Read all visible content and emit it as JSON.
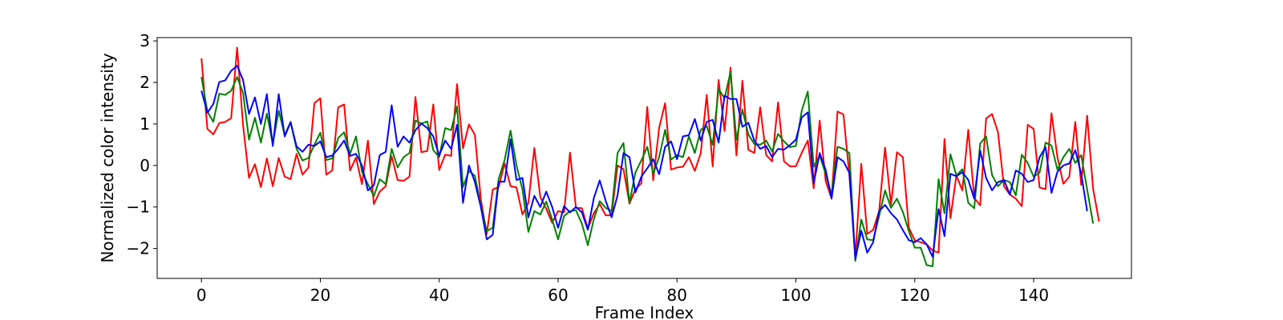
{
  "chart_data": {
    "type": "line",
    "title": "",
    "xlabel": "Frame Index",
    "ylabel": "Normalized color intensity",
    "xlim": [
      -7.45,
      156.45
    ],
    "ylim": [
      -2.72,
      3.08
    ],
    "xticks": [
      0,
      20,
      40,
      60,
      80,
      100,
      120,
      140
    ],
    "yticks": [
      -2,
      -1,
      0,
      1,
      2,
      3
    ],
    "grid": false,
    "legend": "none",
    "series": [
      {
        "color": "#ff0000",
        "values": [
          2.58,
          0.88,
          0.75,
          1.02,
          1.05,
          1.14,
          2.84,
          0.97,
          -0.3,
          0.03,
          -0.52,
          0.17,
          -0.5,
          0.18,
          -0.27,
          -0.33,
          0.28,
          -0.22,
          -0.05,
          1.5,
          1.62,
          -0.22,
          -0.12,
          1.4,
          1.47,
          -0.12,
          0.19,
          -0.45,
          0.6,
          -0.93,
          -0.63,
          -0.5,
          0.22,
          -0.35,
          -0.37,
          -0.27,
          1.65,
          0.32,
          0.35,
          1.47,
          -0.11,
          0.26,
          0.23,
          1.96,
          0.41,
          0.99,
          0.74,
          -0.81,
          -1.65,
          -0.58,
          -0.52,
          0.05,
          -0.5,
          -0.53,
          -1.18,
          -0.9,
          0.42,
          -0.76,
          -1.04,
          -1.38,
          -1.1,
          -1.13,
          0.31,
          -1.02,
          -1.03,
          -1.52,
          -1.15,
          -0.93,
          -1.2,
          -1.2,
          0.0,
          -0.09,
          -0.92,
          -0.57,
          -0.43,
          1.41,
          -0.36,
          0.91,
          1.5,
          -0.1,
          -0.05,
          -0.03,
          0.2,
          -0.13,
          0.3,
          1.7,
          -0.02,
          2.06,
          0.83,
          2.36,
          0.24,
          2.04,
          0.38,
          0.3,
          1.4,
          0.25,
          0.1,
          1.52,
          0.1,
          -0.02,
          -0.02,
          0.31,
          0.6,
          -0.55,
          1.08,
          -0.37,
          -0.8,
          1.3,
          1.23,
          -0.24,
          -2.2,
          0.04,
          -1.65,
          -1.55,
          -1.1,
          0.43,
          -0.94,
          0.32,
          0.2,
          -1.5,
          -1.8,
          -1.85,
          -1.9,
          -2.05,
          -2.1,
          0.64,
          -1.27,
          -0.24,
          -0.6,
          0.86,
          -0.78,
          -0.96,
          1.13,
          1.24,
          0.8,
          -0.5,
          -0.7,
          -0.8,
          -0.98,
          0.98,
          0.88,
          -0.53,
          -0.57,
          1.26,
          0.2,
          -0.44,
          -0.27,
          1.05,
          -0.47,
          1.2,
          -0.56,
          -1.35
        ]
      },
      {
        "color": "#008000",
        "values": [
          2.13,
          1.3,
          1.05,
          1.73,
          1.7,
          1.8,
          2.13,
          1.75,
          0.62,
          1.15,
          0.55,
          1.25,
          0.52,
          1.32,
          0.73,
          1.05,
          0.4,
          0.12,
          0.18,
          0.5,
          0.79,
          0.13,
          0.17,
          0.66,
          0.8,
          0.28,
          0.7,
          -0.15,
          -0.45,
          -0.74,
          -0.33,
          -0.45,
          0.4,
          -0.05,
          0.2,
          0.3,
          1.08,
          1.01,
          1.06,
          0.37,
          0.2,
          0.9,
          0.85,
          1.42,
          -0.52,
          -0.13,
          -0.25,
          -0.96,
          -1.58,
          -1.5,
          -0.32,
          0.13,
          0.84,
          0.0,
          -0.58,
          -1.6,
          -1.1,
          -1.18,
          -0.87,
          -1.3,
          -1.78,
          -1.22,
          -1.1,
          -1.08,
          -1.4,
          -1.92,
          -1.3,
          -0.86,
          -1.02,
          -1.1,
          0.3,
          0.54,
          -0.9,
          -0.17,
          0.12,
          0.45,
          -0.2,
          0.2,
          0.86,
          0.14,
          0.25,
          0.2,
          0.7,
          0.3,
          0.86,
          0.95,
          0.5,
          1.84,
          1.62,
          2.25,
          0.62,
          1.35,
          0.75,
          0.52,
          0.5,
          0.6,
          0.34,
          0.76,
          0.58,
          0.44,
          0.47,
          1.33,
          1.78,
          -0.03,
          0.24,
          -0.2,
          -0.7,
          0.45,
          0.4,
          0.3,
          -2.3,
          -1.3,
          -1.78,
          -1.8,
          -1.22,
          -0.6,
          -1.02,
          -0.8,
          -1.12,
          -1.58,
          -1.98,
          -1.98,
          -2.4,
          -2.43,
          -0.33,
          -1.15,
          0.27,
          -0.24,
          -0.09,
          -0.9,
          -1.03,
          0.53,
          0.7,
          -0.23,
          -0.5,
          -0.35,
          -0.4,
          -0.72,
          0.26,
          0.06,
          -0.27,
          -0.17,
          0.55,
          0.48,
          -0.1,
          0.2,
          0.4,
          0.06,
          0.25,
          -0.58,
          -1.4
        ]
      },
      {
        "color": "#0000ff",
        "values": [
          1.8,
          1.27,
          1.48,
          2.01,
          2.05,
          2.28,
          2.4,
          2.06,
          1.24,
          1.64,
          1.0,
          1.72,
          0.47,
          1.72,
          0.7,
          1.04,
          0.46,
          0.33,
          0.5,
          0.47,
          0.58,
          0.2,
          0.24,
          0.4,
          0.6,
          0.23,
          0.28,
          0.0,
          -0.6,
          -0.48,
          0.25,
          0.33,
          1.45,
          0.45,
          0.7,
          0.55,
          0.85,
          1.01,
          0.9,
          0.7,
          0.24,
          0.6,
          0.4,
          0.98,
          -0.9,
          0.0,
          -0.4,
          -1.0,
          -1.78,
          -1.67,
          -0.39,
          -0.39,
          0.63,
          -0.35,
          -0.3,
          -1.25,
          -0.73,
          -1.0,
          -0.63,
          -1.0,
          -1.5,
          -0.98,
          -1.13,
          -1.0,
          -1.13,
          -1.55,
          -0.79,
          -0.36,
          -0.85,
          -1.25,
          -0.72,
          0.3,
          0.2,
          -0.65,
          -0.27,
          -0.07,
          0.15,
          -0.21,
          0.45,
          0.58,
          0.15,
          0.7,
          0.73,
          1.12,
          0.6,
          1.05,
          1.1,
          0.55,
          1.68,
          1.6,
          1.6,
          0.93,
          1.03,
          0.6,
          0.4,
          0.47,
          0.2,
          0.4,
          0.38,
          0.49,
          0.62,
          1.16,
          1.28,
          -0.43,
          0.3,
          -0.1,
          -0.8,
          0.2,
          0.1,
          -0.18,
          -2.25,
          -1.57,
          -2.1,
          -1.85,
          -1.1,
          -0.95,
          -1.15,
          -1.3,
          -1.56,
          -1.8,
          -1.85,
          -1.75,
          -1.9,
          -2.2,
          -1.05,
          -1.7,
          -0.2,
          -0.26,
          -0.16,
          -0.35,
          -0.8,
          0.36,
          -0.3,
          -0.6,
          -0.4,
          -0.35,
          -0.7,
          -0.12,
          -0.2,
          -0.4,
          -0.35,
          0.2,
          0.44,
          -0.66,
          -0.15,
          0.0,
          0.05,
          0.37,
          -0.2,
          -1.1
        ]
      }
    ]
  }
}
